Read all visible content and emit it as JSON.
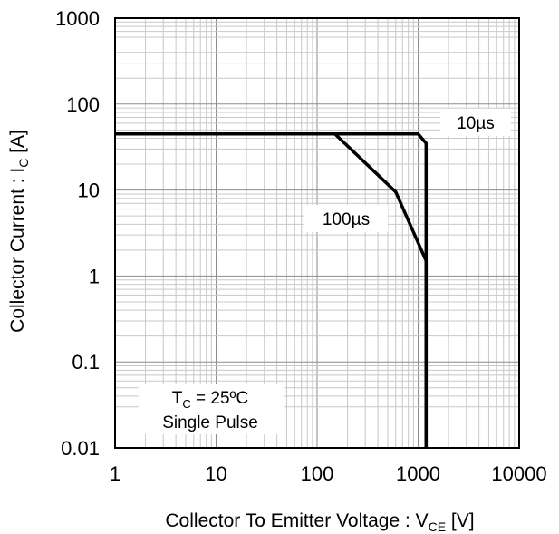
{
  "chart_data": {
    "type": "line",
    "x_scale": "log",
    "y_scale": "log",
    "xlim": [
      1,
      10000
    ],
    "ylim": [
      0.01,
      1000
    ],
    "grid": true,
    "xlabel": {
      "main": "Collector To Emitter Voltage : V",
      "sub": "CE",
      "unit": " [V]"
    },
    "ylabel": {
      "main": "Collector Current : I",
      "sub": "C",
      "unit": " [A]"
    },
    "x_ticks": [
      {
        "value": 1,
        "label": "1"
      },
      {
        "value": 10,
        "label": "10"
      },
      {
        "value": 100,
        "label": "100"
      },
      {
        "value": 1000,
        "label": "1000"
      },
      {
        "value": 10000,
        "label": "10000"
      }
    ],
    "y_ticks": [
      {
        "value": 1000,
        "label": "1000"
      },
      {
        "value": 100,
        "label": "100"
      },
      {
        "value": 10,
        "label": "10"
      },
      {
        "value": 1,
        "label": "1"
      },
      {
        "value": 0.1,
        "label": "0.1"
      },
      {
        "value": 0.01,
        "label": "0.01"
      }
    ],
    "series": [
      {
        "label": "10µs",
        "x": [
          1,
          1000,
          1200,
          1200
        ],
        "y": [
          45,
          45,
          35,
          0.01
        ]
      },
      {
        "label": "100µs",
        "x": [
          1,
          150,
          600,
          1200,
          1200
        ],
        "y": [
          45,
          45,
          9.5,
          1.5,
          0.01
        ]
      }
    ],
    "conditions": {
      "line1_main": "T",
      "line1_sub": "C",
      "line1_rest": " = 25ºC",
      "line2": "Single Pulse"
    },
    "colors": {
      "line": "#000000",
      "major_grid": "#8c8c8c",
      "minor_grid": "#c8c8c8",
      "background": "#ffffff"
    }
  }
}
